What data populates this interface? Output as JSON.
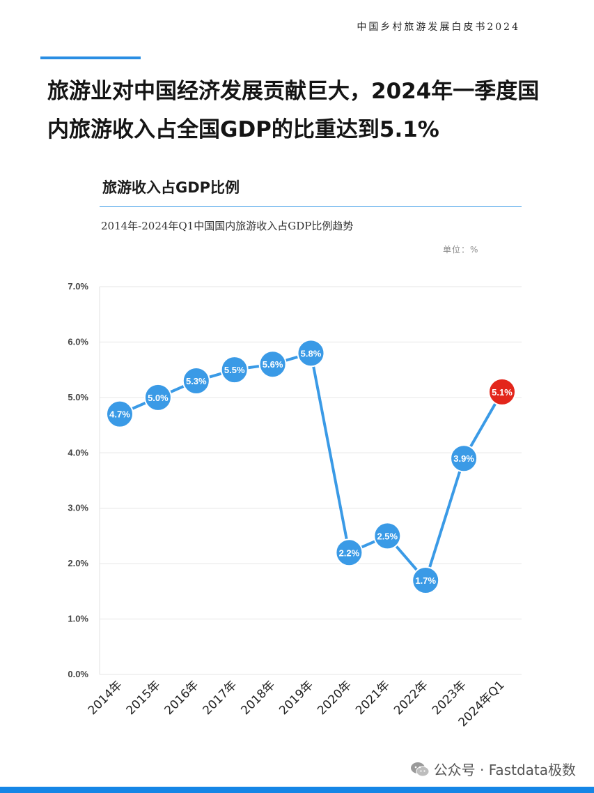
{
  "header": {
    "doc_title": "中国乡村旅游发展白皮书2024"
  },
  "headline": {
    "line1": "旅游业对中国经济发展贡献巨大，2024年一季度国",
    "line2": "内旅游收入占全国GDP的比重达到5.1%"
  },
  "chart_header": {
    "title": "旅游收入占GDP比例",
    "subtitle": "2014年-2024年Q1中国国内旅游收入占GDP比例趋势",
    "unit": "单位：%"
  },
  "watermark": {
    "text": "公众号 · Fastdata极数"
  },
  "colors": {
    "accent": "#2a8ee3",
    "line": "#3a9ae6",
    "highlight": "#e3261b",
    "footer": "#1586e6"
  },
  "chart_data": {
    "type": "line",
    "title": "旅游收入占GDP比例",
    "subtitle": "2014年-2024年Q1中国国内旅游收入占GDP比例趋势",
    "categories": [
      "2014年",
      "2015年",
      "2016年",
      "2017年",
      "2018年",
      "2019年",
      "2020年",
      "2021年",
      "2022年",
      "2023年",
      "2024年Q1"
    ],
    "values": [
      4.7,
      5.0,
      5.3,
      5.5,
      5.6,
      5.8,
      2.2,
      2.5,
      1.7,
      3.9,
      5.1
    ],
    "data_labels": [
      "4.7%",
      "5.0%",
      "5.3%",
      "5.5%",
      "5.6%",
      "5.8%",
      "2.2%",
      "2.5%",
      "1.7%",
      "3.9%",
      "5.1%"
    ],
    "y_ticks": [
      "0.0%",
      "1.0%",
      "2.0%",
      "3.0%",
      "4.0%",
      "5.0%",
      "6.0%",
      "7.0%"
    ],
    "ylim": [
      0,
      7
    ],
    "grid": true,
    "highlight_index": 10
  }
}
